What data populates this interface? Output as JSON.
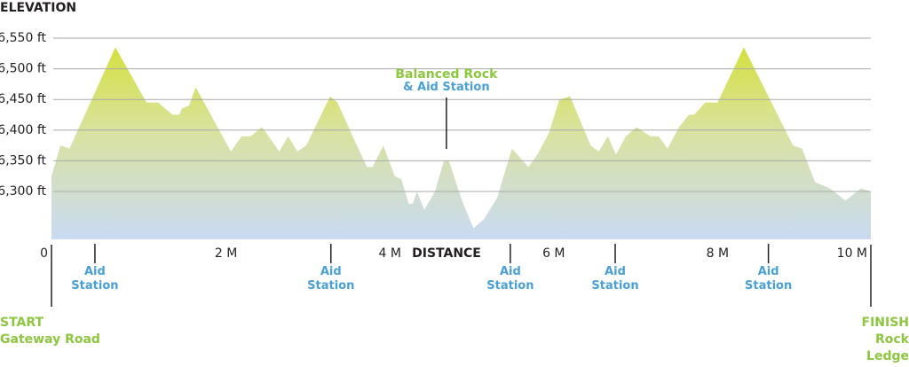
{
  "chart_data": {
    "type": "area",
    "title": "ELEVATION",
    "x_label": "DISTANCE",
    "x": [
      0,
      0.11,
      0.22,
      0.78,
      1.16,
      1.3,
      1.48,
      1.56,
      1.59,
      1.68,
      1.76,
      2.19,
      2.32,
      2.43,
      2.57,
      2.78,
      2.89,
      3.0,
      3.11,
      3.4,
      3.49,
      3.71,
      3.85,
      3.92,
      4.05,
      4.19,
      4.27,
      4.36,
      4.41,
      4.46,
      4.55,
      4.68,
      4.79,
      4.85,
      5.01,
      5.15,
      5.28,
      5.44,
      5.62,
      5.82,
      5.93,
      6.07,
      6.2,
      6.33,
      6.58,
      6.68,
      6.79,
      6.89,
      7.01,
      7.14,
      7.31,
      7.41,
      7.52,
      7.66,
      7.78,
      7.84,
      7.98,
      8.13,
      8.45,
      9.05,
      9.16,
      9.32,
      9.5,
      9.69,
      9.88,
      10
    ],
    "values": [
      6325,
      6375,
      6370,
      6535,
      6445,
      6445,
      6425,
      6425,
      6435,
      6440,
      6470,
      6365,
      6390,
      6390,
      6405,
      6365,
      6390,
      6365,
      6375,
      6455,
      6445,
      6380,
      6340,
      6340,
      6375,
      6325,
      6320,
      6280,
      6280,
      6300,
      6270,
      6300,
      6350,
      6350,
      6285,
      6240,
      6255,
      6290,
      6370,
      6340,
      6360,
      6395,
      6450,
      6455,
      6375,
      6365,
      6390,
      6360,
      6390,
      6405,
      6390,
      6390,
      6370,
      6405,
      6425,
      6425,
      6445,
      6445,
      6535,
      6375,
      6370,
      6315,
      6305,
      6285,
      6305,
      6300
    ],
    "xlim": [
      0,
      10
    ],
    "xticks": [
      0,
      {
        "value": 2,
        "label": "2 M"
      },
      {
        "value": 4,
        "label": "4 M"
      },
      {
        "value": 6,
        "label": "6 M"
      },
      {
        "value": 8,
        "label": "8 M"
      },
      {
        "value": 10,
        "label": "10 M"
      }
    ],
    "ylim": [
      6222,
      6550
    ],
    "yticks": [
      {
        "value": 6300,
        "label": "6,300 ft"
      },
      {
        "value": 6350,
        "label": "6,350 ft"
      },
      {
        "value": 6400,
        "label": "6,400 ft"
      },
      {
        "value": 6450,
        "label": "6,450 ft"
      },
      {
        "value": 6500,
        "label": "6,500 ft"
      },
      {
        "value": 6550,
        "label": "6,550 ft"
      }
    ],
    "grid": true,
    "aid_stations": [
      {
        "x": 0.53,
        "label": "Aid Station"
      },
      {
        "x": 3.41,
        "label": "Aid Station"
      },
      {
        "x": 5.6,
        "label": "Aid Station"
      },
      {
        "x": 6.88,
        "label": "Aid Station"
      },
      {
        "x": 8.75,
        "label": "Aid Station"
      }
    ],
    "landmark": {
      "x": 4.82,
      "title": "Balanced Rock",
      "subtitle": "& Aid Station"
    },
    "start": {
      "x": 0,
      "title": "START",
      "subtitle": "Gateway Road"
    },
    "finish": {
      "x": 10,
      "title": "FINISH",
      "subtitle": "Rock Ledge Ranch"
    }
  }
}
